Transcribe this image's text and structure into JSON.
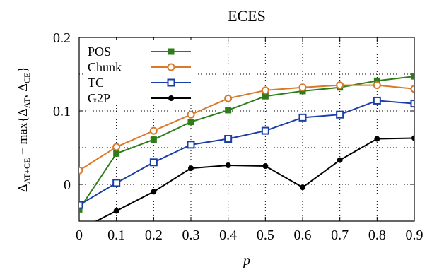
{
  "chart_data": {
    "type": "line",
    "title": "ECES",
    "xlabel": "p",
    "ylabel": "Δ_AT+CE − max{Δ_AT, Δ_CE}",
    "ylabel_parts": {
      "delta1": "Δ",
      "sub1": "AT+CE",
      "mid": " − max{",
      "delta2": "Δ",
      "sub2": "AT",
      "comma": ", ",
      "delta3": "Δ",
      "sub3": "CE",
      "end": "}"
    },
    "x": [
      0,
      0.1,
      0.2,
      0.3,
      0.4,
      0.5,
      0.6,
      0.7,
      0.8,
      0.9
    ],
    "xlim": [
      0,
      0.9
    ],
    "ylim": [
      -0.05,
      0.2
    ],
    "xticks": [
      0,
      0.1,
      0.2,
      0.3,
      0.4,
      0.5,
      0.6,
      0.7,
      0.8,
      0.9
    ],
    "xtick_labels": [
      "0",
      "0.1",
      "0.2",
      "0.3",
      "0.4",
      "0.5",
      "0.6",
      "0.7",
      "0.8",
      "0.9"
    ],
    "yticks": [
      0,
      0.1,
      0.2
    ],
    "ytick_labels": [
      "0",
      "0.1",
      "0.2"
    ],
    "grid": true,
    "legend_position": "top-left",
    "series": [
      {
        "name": "POS",
        "color": "#2e7d1a",
        "marker": "filled-square",
        "values": [
          -0.034,
          0.042,
          0.061,
          0.085,
          0.101,
          0.12,
          0.127,
          0.132,
          0.141,
          0.147
        ]
      },
      {
        "name": "Chunk",
        "color": "#d9792b",
        "marker": "open-circle",
        "values": [
          0.019,
          0.051,
          0.073,
          0.095,
          0.117,
          0.128,
          0.132,
          0.135,
          0.135,
          0.13
        ]
      },
      {
        "name": "TC",
        "color": "#1a3ea8",
        "marker": "open-square",
        "values": [
          -0.028,
          0.002,
          0.03,
          0.054,
          0.062,
          0.073,
          0.091,
          0.095,
          0.114,
          0.11
        ]
      },
      {
        "name": "G2P",
        "color": "#000000",
        "marker": "filled-circle",
        "values": [
          -0.062,
          -0.036,
          -0.01,
          0.022,
          0.026,
          0.025,
          -0.004,
          0.033,
          0.062,
          0.063
        ]
      }
    ]
  }
}
